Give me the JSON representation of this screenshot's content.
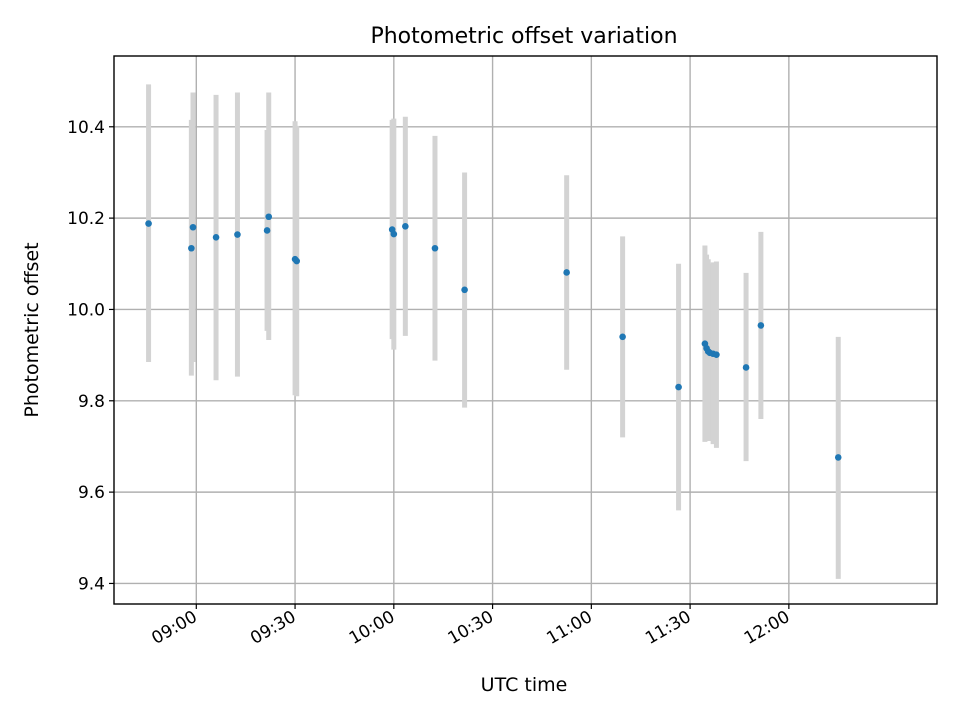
{
  "chart_data": {
    "type": "scatter",
    "title": "Photometric offset variation",
    "xlabel": "UTC time",
    "ylabel": "Photometric offset",
    "xlim": [
      "08:35",
      "12:45"
    ],
    "ylim": [
      9.355,
      10.555
    ],
    "x_ticks": [
      "09:00",
      "09:30",
      "10:00",
      "10:30",
      "11:00",
      "11:30",
      "12:00"
    ],
    "y_ticks": [
      "9.4",
      "9.6",
      "9.8",
      "10.0",
      "10.2",
      "10.4"
    ],
    "grid": true,
    "point_color": "#1f77b4",
    "errorbar_color": "#d3d3d3",
    "points": [
      {
        "t": "08:45:30",
        "y": 10.188,
        "lo": 9.885,
        "hi": 10.493
      },
      {
        "t": "08:58:30",
        "y": 10.134,
        "lo": 9.855,
        "hi": 10.415
      },
      {
        "t": "08:59:00",
        "y": 10.18,
        "lo": 9.885,
        "hi": 10.475
      },
      {
        "t": "09:06:00",
        "y": 10.158,
        "lo": 9.845,
        "hi": 10.47
      },
      {
        "t": "09:12:30",
        "y": 10.164,
        "lo": 9.853,
        "hi": 10.475
      },
      {
        "t": "09:21:30",
        "y": 10.173,
        "lo": 9.953,
        "hi": 10.393
      },
      {
        "t": "09:22:00",
        "y": 10.203,
        "lo": 9.933,
        "hi": 10.475
      },
      {
        "t": "09:30:00",
        "y": 10.11,
        "lo": 9.812,
        "hi": 10.412
      },
      {
        "t": "09:30:30",
        "y": 10.106,
        "lo": 9.81,
        "hi": 10.402
      },
      {
        "t": "09:59:30",
        "y": 10.175,
        "lo": 9.935,
        "hi": 10.415
      },
      {
        "t": "10:00:00",
        "y": 10.165,
        "lo": 9.912,
        "hi": 10.418
      },
      {
        "t": "10:03:30",
        "y": 10.182,
        "lo": 9.942,
        "hi": 10.422
      },
      {
        "t": "10:12:30",
        "y": 10.134,
        "lo": 9.888,
        "hi": 10.38
      },
      {
        "t": "10:21:30",
        "y": 10.043,
        "lo": 9.785,
        "hi": 10.3
      },
      {
        "t": "10:52:30",
        "y": 10.081,
        "lo": 9.868,
        "hi": 10.294
      },
      {
        "t": "11:09:30",
        "y": 9.94,
        "lo": 9.72,
        "hi": 10.16
      },
      {
        "t": "11:26:30",
        "y": 9.83,
        "lo": 9.56,
        "hi": 10.1
      },
      {
        "t": "11:34:30",
        "y": 9.925,
        "lo": 9.71,
        "hi": 10.14
      },
      {
        "t": "11:35:00",
        "y": 9.915,
        "lo": 9.715,
        "hi": 10.12
      },
      {
        "t": "11:35:30",
        "y": 9.908,
        "lo": 9.712,
        "hi": 10.11
      },
      {
        "t": "11:36:00",
        "y": 9.905,
        "lo": 9.712,
        "hi": 10.1
      },
      {
        "t": "11:37:00",
        "y": 9.903,
        "lo": 9.705,
        "hi": 10.103
      },
      {
        "t": "11:38:00",
        "y": 9.901,
        "lo": 9.697,
        "hi": 10.105
      },
      {
        "t": "11:47:00",
        "y": 9.873,
        "lo": 9.668,
        "hi": 10.08
      },
      {
        "t": "11:51:30",
        "y": 9.965,
        "lo": 9.76,
        "hi": 10.17
      },
      {
        "t": "12:15:00",
        "y": 9.676,
        "lo": 9.41,
        "hi": 9.94
      }
    ]
  }
}
